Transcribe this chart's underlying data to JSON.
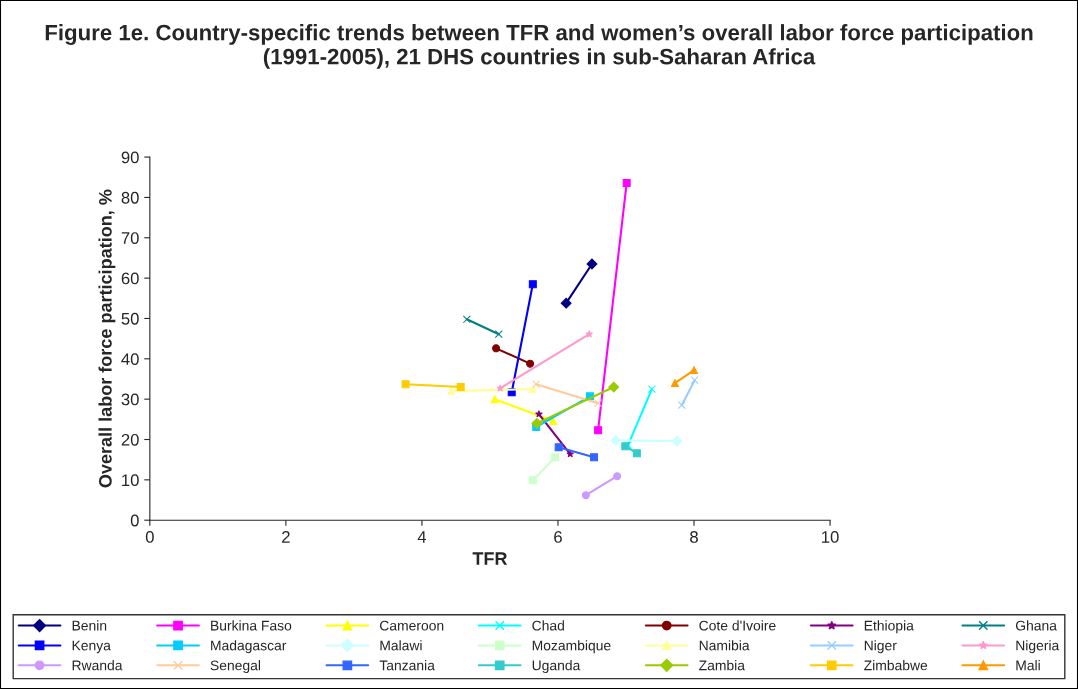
{
  "chart_data": {
    "type": "line",
    "title": "Figure 1e. Country-specific trends between TFR and women’s overall labor force participation (1991-2005), 21 DHS countries in sub-Saharan Africa",
    "xlabel": "TFR",
    "ylabel": "Overall labor force participation, %",
    "xlim": [
      0,
      10
    ],
    "xticks": [
      0,
      2,
      4,
      6,
      8,
      10
    ],
    "ylim": [
      0,
      90
    ],
    "yticks": [
      0,
      10,
      20,
      30,
      40,
      50,
      60,
      70,
      80,
      90
    ],
    "grid": false,
    "legend": "bottom",
    "series": [
      {
        "name": "Benin",
        "color": "#000080",
        "marker": "diamond",
        "x": [
          6.12,
          6.5
        ],
        "values": [
          53.8,
          63.5
        ]
      },
      {
        "name": "Burkina Faso",
        "color": "#ff00ff",
        "marker": "square",
        "x": [
          6.59,
          7.01
        ],
        "values": [
          22.3,
          83.6
        ]
      },
      {
        "name": "Cameroon",
        "color": "#ffff00",
        "marker": "triangle",
        "x": [
          5.07,
          5.93
        ],
        "values": [
          30.0,
          24.6
        ]
      },
      {
        "name": "Chad",
        "color": "#00ffff",
        "marker": "cross",
        "x": [
          7.03,
          7.38
        ],
        "values": [
          18.6,
          32.5
        ]
      },
      {
        "name": "Cote d'Ivoire",
        "color": "#800000",
        "marker": "circle",
        "x": [
          5.09,
          5.59
        ],
        "values": [
          42.6,
          38.8
        ]
      },
      {
        "name": "Ethiopia",
        "color": "#800080",
        "marker": "star",
        "x": [
          5.72,
          6.18
        ],
        "values": [
          26.3,
          16.4
        ]
      },
      {
        "name": "Ghana",
        "color": "#008080",
        "marker": "cross",
        "x": [
          4.66,
          5.13
        ],
        "values": [
          49.8,
          46.1
        ]
      },
      {
        "name": "Kenya",
        "color": "#0000ff",
        "marker": "square",
        "x": [
          5.32,
          5.63
        ],
        "values": [
          31.7,
          58.5
        ]
      },
      {
        "name": "Madagascar",
        "color": "#00ccff",
        "marker": "square",
        "x": [
          5.68,
          6.47
        ],
        "values": [
          23.1,
          30.7
        ]
      },
      {
        "name": "Malawi",
        "color": "#ccffff",
        "marker": "diamond",
        "x": [
          6.85,
          7.75
        ],
        "values": [
          19.8,
          19.6
        ]
      },
      {
        "name": "Mozambique",
        "color": "#ccffcc",
        "marker": "square",
        "x": [
          5.63,
          5.96
        ],
        "values": [
          9.9,
          15.6
        ]
      },
      {
        "name": "Namibia",
        "color": "#ffff99",
        "marker": "triangle",
        "x": [
          4.43,
          5.63
        ],
        "values": [
          32.0,
          32.5
        ]
      },
      {
        "name": "Niger",
        "color": "#99ccff",
        "marker": "cross",
        "x": [
          7.82,
          8.01
        ],
        "values": [
          28.5,
          34.7
        ]
      },
      {
        "name": "Nigeria",
        "color": "#ff99cc",
        "marker": "star",
        "x": [
          5.15,
          6.46
        ],
        "values": [
          32.7,
          46.1
        ]
      },
      {
        "name": "Rwanda",
        "color": "#cc99ff",
        "marker": "circle",
        "x": [
          6.41,
          6.87
        ],
        "values": [
          6.2,
          10.9
        ]
      },
      {
        "name": "Senegal",
        "color": "#ffcc99",
        "marker": "cross",
        "x": [
          5.68,
          6.59
        ],
        "values": [
          33.7,
          29.0
        ]
      },
      {
        "name": "Tanzania",
        "color": "#3366ff",
        "marker": "square",
        "x": [
          6.01,
          6.53
        ],
        "values": [
          18.1,
          15.6
        ]
      },
      {
        "name": "Uganda",
        "color": "#33cccc",
        "marker": "square",
        "x": [
          6.99,
          7.16
        ],
        "values": [
          18.3,
          16.6
        ]
      },
      {
        "name": "Zambia",
        "color": "#99cc00",
        "marker": "diamond",
        "x": [
          5.69,
          6.82
        ],
        "values": [
          24.0,
          33.0
        ]
      },
      {
        "name": "Zimbabwe",
        "color": "#ffcc00",
        "marker": "square",
        "x": [
          3.76,
          4.57
        ],
        "values": [
          33.7,
          33.0
        ]
      },
      {
        "name": "Mali",
        "color": "#ff9900",
        "marker": "triangle",
        "x": [
          7.72,
          8.0
        ],
        "values": [
          34.0,
          37.2
        ]
      }
    ]
  }
}
